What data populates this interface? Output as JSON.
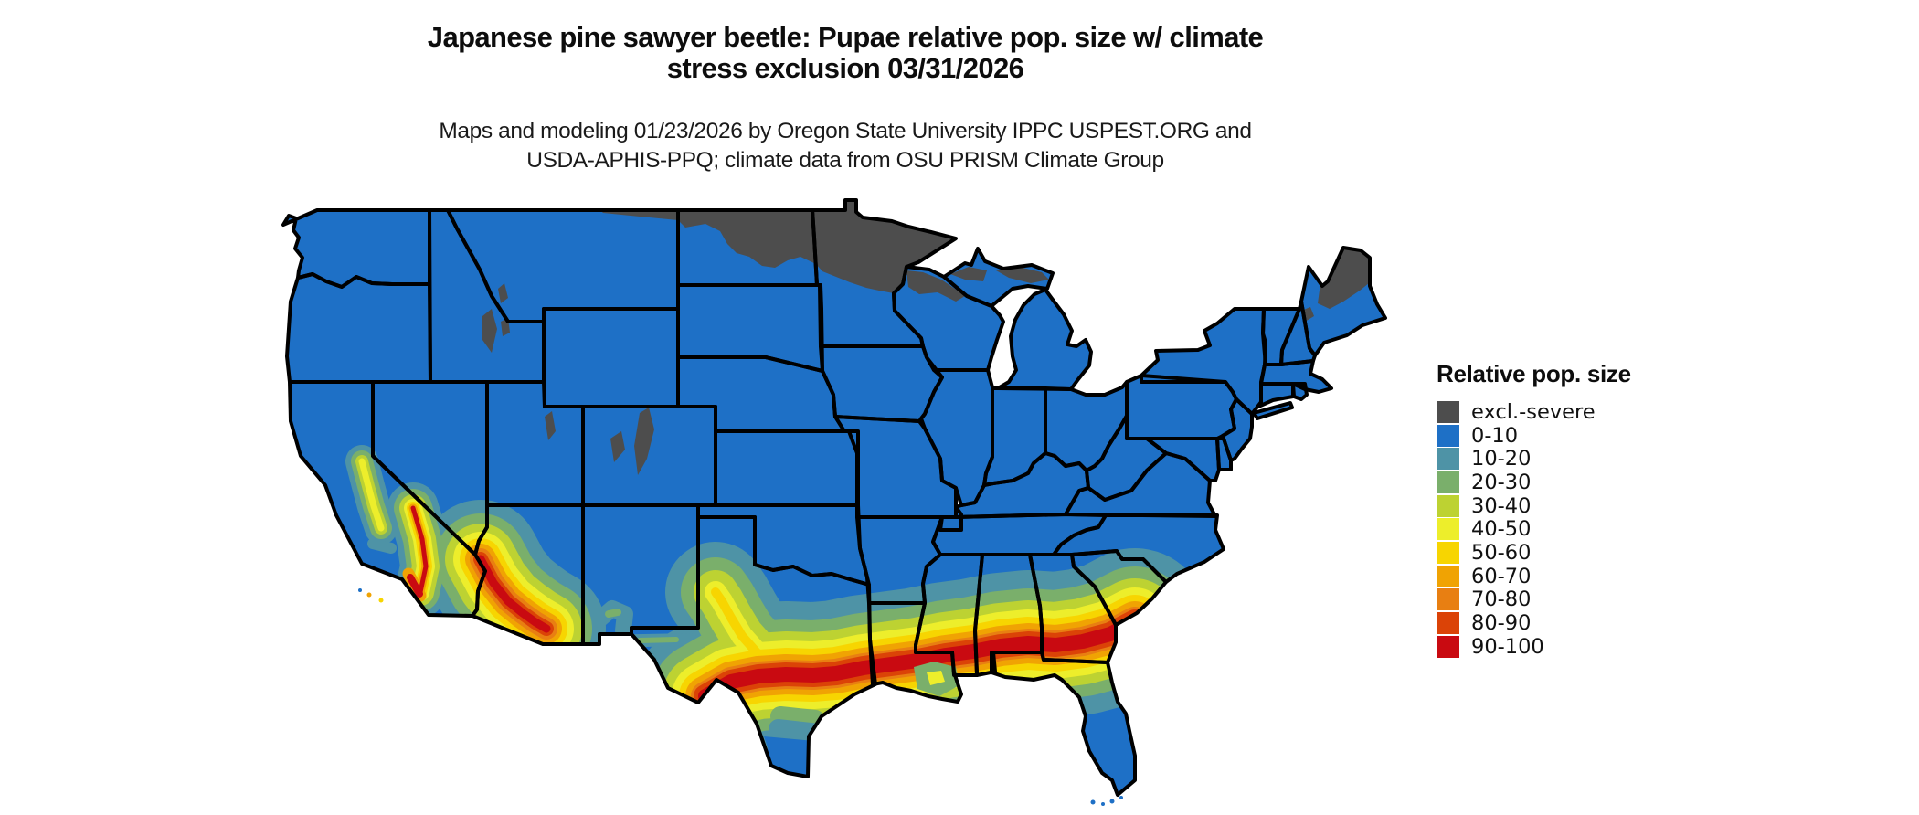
{
  "header": {
    "title_line1": "Japanese pine sawyer beetle: Pupae relative pop. size w/ climate",
    "title_line2": "stress exclusion 03/31/2026",
    "subtitle_line1": "Maps and modeling 01/23/2026 by Oregon State University IPPC USPEST.ORG and",
    "subtitle_line2": "USDA-APHIS-PPQ; climate data from OSU PRISM Climate Group"
  },
  "legend": {
    "title": "Relative pop. size",
    "items": [
      {
        "label": "excl.-severe",
        "color": "#4D4D4D",
        "key": "excl"
      },
      {
        "label": "0-10",
        "color": "#1E70C6",
        "key": "v0"
      },
      {
        "label": "10-20",
        "color": "#4E93A6",
        "key": "v10"
      },
      {
        "label": "20-30",
        "color": "#7AAF6B",
        "key": "v20"
      },
      {
        "label": "30-40",
        "color": "#BDD232",
        "key": "v30"
      },
      {
        "label": "40-50",
        "color": "#EDEE2B",
        "key": "v40"
      },
      {
        "label": "50-60",
        "color": "#F7D501",
        "key": "v50"
      },
      {
        "label": "60-70",
        "color": "#F0A303",
        "key": "v60"
      },
      {
        "label": "70-80",
        "color": "#E87F12",
        "key": "v70"
      },
      {
        "label": "80-90",
        "color": "#DB4307",
        "key": "v80"
      },
      {
        "label": "90-100",
        "color": "#C90A11",
        "key": "v90"
      }
    ]
  },
  "map": {
    "region": "Contiguous United States",
    "border_color": "#000000",
    "water_color": "#FFFFFF"
  }
}
